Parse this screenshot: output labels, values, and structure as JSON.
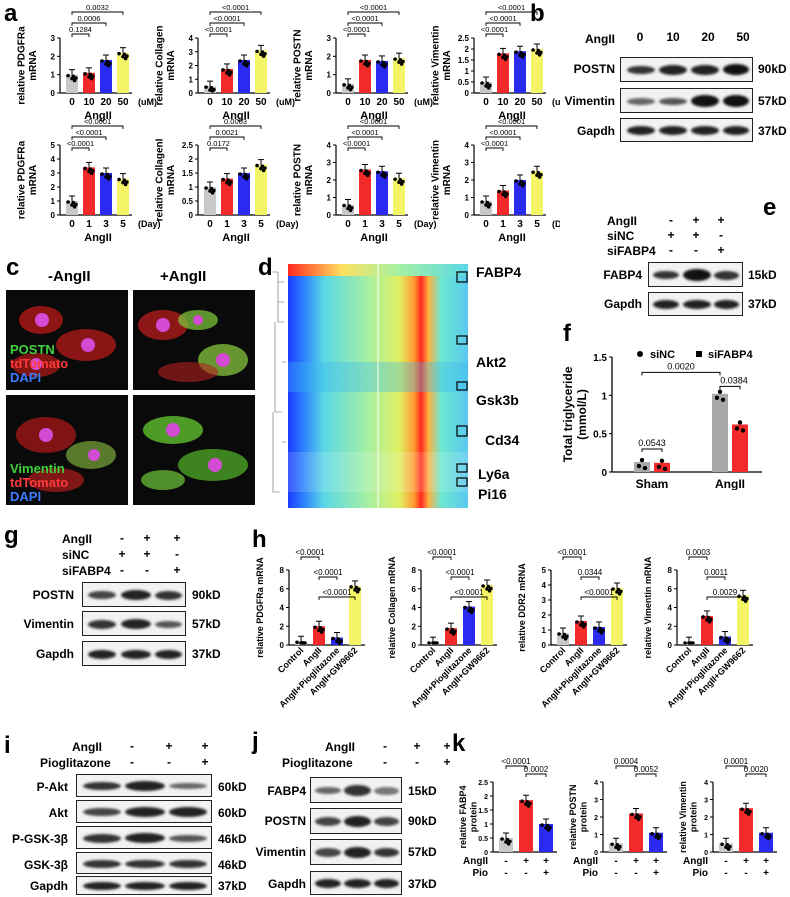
{
  "panels": {
    "a": "a",
    "b": "b",
    "c": "c",
    "d": "d",
    "e": "e",
    "f": "f",
    "g": "g",
    "h": "h",
    "i": "i",
    "j": "j",
    "k": "k"
  },
  "colors": {
    "grey": "#c8c8c8",
    "red": "#f32a2a",
    "blue": "#2a2af0",
    "yellow": "#f4f566"
  },
  "panel_a": {
    "charts": [
      {
        "ylabel": "relative PDGFRa mRNA",
        "cats": [
          "0",
          "10",
          "20",
          "50"
        ],
        "unit": "(uM)",
        "xlabel": "AngII",
        "values": [
          1.0,
          1.1,
          1.8,
          2.2
        ],
        "ymax": 3,
        "ticks": [
          0,
          1,
          2,
          3
        ],
        "pvals": [
          {
            "a": 0,
            "b": 1,
            "t": "0.1284"
          },
          {
            "a": 0,
            "b": 2,
            "t": "0.0006"
          },
          {
            "a": 0,
            "b": 3,
            "t": "0.0032"
          }
        ]
      },
      {
        "ylabel": "relative Collagen mRNA",
        "cats": [
          "0",
          "10",
          "20",
          "50"
        ],
        "unit": "(uM)",
        "xlabel": "AngII",
        "values": [
          0.5,
          1.75,
          2.4,
          3.1
        ],
        "ymax": 4,
        "ticks": [
          0,
          1,
          2,
          3,
          4
        ],
        "pvals": [
          {
            "a": 0,
            "b": 1,
            "t": "<0.0001"
          },
          {
            "a": 0,
            "b": 2,
            "t": "<0.0001"
          },
          {
            "a": 0,
            "b": 3,
            "t": "<0.0001"
          }
        ]
      },
      {
        "ylabel": "relative POSTN mRNA",
        "cats": [
          "0",
          "10",
          "20",
          "50"
        ],
        "unit": "(uM)",
        "xlabel": "AngII",
        "values": [
          0.5,
          1.8,
          1.75,
          1.9
        ],
        "ymax": 3,
        "ticks": [
          0,
          1,
          2,
          3
        ],
        "pvals": [
          {
            "a": 0,
            "b": 1,
            "t": "<0.0001"
          },
          {
            "a": 0,
            "b": 2,
            "t": "<0.0001"
          },
          {
            "a": 0,
            "b": 3,
            "t": "<0.0001"
          }
        ]
      },
      {
        "ylabel": "relative Vimentin mRNA",
        "cats": [
          "0",
          "10",
          "20",
          "50"
        ],
        "unit": "(uM)",
        "xlabel": "AngII",
        "values": [
          0.5,
          1.8,
          1.9,
          2.0
        ],
        "ymax": 2.5,
        "ticks": [
          0,
          0.5,
          1,
          1.5,
          2,
          2.5
        ],
        "pvals": [
          {
            "a": 0,
            "b": 1,
            "t": "<0.0001"
          },
          {
            "a": 0,
            "b": 2,
            "t": "<0.0001"
          },
          {
            "a": 0,
            "b": 3,
            "t": "<0.0001"
          }
        ]
      },
      {
        "ylabel": "relative PDGFRa mRNA",
        "cats": [
          "0",
          "1",
          "3",
          "5"
        ],
        "unit": "(Day)",
        "xlabel": "AngII",
        "values": [
          1.0,
          3.4,
          3.0,
          2.6
        ],
        "ymax": 5,
        "ticks": [
          0,
          1,
          2,
          3,
          4,
          5
        ],
        "pvals": [
          {
            "a": 0,
            "b": 1,
            "t": "<0.0001"
          },
          {
            "a": 0,
            "b": 2,
            "t": "<0.0001"
          },
          {
            "a": 0,
            "b": 3,
            "t": "<0.0001"
          }
        ]
      },
      {
        "ylabel": "relative CollagenI mRNA",
        "cats": [
          "0",
          "1",
          "3",
          "5"
        ],
        "unit": "(Day)",
        "xlabel": "AngII",
        "values": [
          1.0,
          1.3,
          1.5,
          1.8
        ],
        "ymax": 2.5,
        "ticks": [
          0,
          0.5,
          1,
          1.5,
          2,
          2.5
        ],
        "pvals": [
          {
            "a": 0,
            "b": 1,
            "t": "0.0172"
          },
          {
            "a": 0,
            "b": 2,
            "t": "0.0021"
          },
          {
            "a": 0,
            "b": 3,
            "t": "0.0003"
          }
        ]
      },
      {
        "ylabel": "relative POSTN mRNA",
        "cats": [
          "0",
          "1",
          "3",
          "5"
        ],
        "unit": "(Day)",
        "xlabel": "AngII",
        "values": [
          0.6,
          2.6,
          2.5,
          2.1
        ],
        "ymax": 4,
        "ticks": [
          0,
          1,
          2,
          3,
          4
        ],
        "pvals": [
          {
            "a": 0,
            "b": 1,
            "t": "<0.0001"
          },
          {
            "a": 0,
            "b": 2,
            "t": "<0.0001"
          },
          {
            "a": 0,
            "b": 3,
            "t": "<0.0001"
          }
        ]
      },
      {
        "ylabel": "relative Vimentin mRNA",
        "cats": [
          "0",
          "1",
          "3",
          "5"
        ],
        "unit": "(Day)",
        "xlabel": "AngII",
        "values": [
          0.8,
          1.4,
          2.0,
          2.5
        ],
        "ymax": 4,
        "ticks": [
          0,
          1,
          2,
          3,
          4
        ],
        "pvals": [
          {
            "a": 0,
            "b": 1,
            "t": "<0.0001"
          },
          {
            "a": 0,
            "b": 2,
            "t": "<0.0001"
          },
          {
            "a": 0,
            "b": 3,
            "t": "<0.0001"
          }
        ]
      }
    ]
  },
  "panel_b": {
    "cond_label": "AngII",
    "doses": [
      "0",
      "10",
      "20",
      "50"
    ],
    "rows": [
      {
        "name": "POSTN",
        "size": "90kD"
      },
      {
        "name": "Vimentin",
        "size": "57kD"
      },
      {
        "name": "Gapdh",
        "size": "37kD"
      }
    ]
  },
  "panel_c": {
    "col_left": "-AngII",
    "col_right": "+AngII",
    "top": {
      "l1": "POSTN",
      "l2": "tdTomato",
      "l3": "DAPI"
    },
    "bottom": {
      "l1": "Vimentin",
      "l2": "tdTomato",
      "l3": "DAPI"
    }
  },
  "panel_d": {
    "genes": [
      "FABP4",
      "Akt2",
      "Gsk3b",
      "Cd34",
      "Ly6a",
      "Pi16"
    ]
  },
  "panel_e": {
    "rows": [
      {
        "label": "AngII",
        "signs": [
          "-",
          "+",
          "+"
        ]
      },
      {
        "label": "siNC",
        "signs": [
          "+",
          "+",
          "-"
        ]
      },
      {
        "label": "siFABP4",
        "signs": [
          "-",
          "-",
          "+"
        ]
      }
    ],
    "blots": [
      {
        "name": "FABP4",
        "size": "15kD"
      },
      {
        "name": "Gapdh",
        "size": "37kD"
      }
    ]
  },
  "panel_f": {
    "chart_data": {
      "type": "bar",
      "ylabel": "Total triglyceride (mmol/L)",
      "ylim": [
        0,
        1.5
      ],
      "ticks": [
        0,
        0.5,
        1,
        1.5
      ],
      "categories": [
        "Sham",
        "AngII"
      ],
      "series": [
        {
          "name": "siNC",
          "values": [
            0.13,
            1.02
          ]
        },
        {
          "name": "siFABP4",
          "values": [
            0.12,
            0.62
          ]
        }
      ],
      "pvals": [
        {
          "t": "0.0543"
        },
        {
          "t": "0.0020"
        },
        {
          "t": "0.0384"
        }
      ]
    }
  },
  "panel_g": {
    "rows": [
      {
        "label": "AngII",
        "signs": [
          "-",
          "+",
          "+"
        ]
      },
      {
        "label": "siNC",
        "signs": [
          "+",
          "+",
          "-"
        ]
      },
      {
        "label": "siFABP4",
        "signs": [
          "-",
          "-",
          "+"
        ]
      }
    ],
    "blots": [
      {
        "name": "POSTN",
        "size": "90kD"
      },
      {
        "name": "Vimentin",
        "size": "57kD"
      },
      {
        "name": "Gapdh",
        "size": "37kD"
      }
    ]
  },
  "panel_h": {
    "cats": [
      "Control",
      "AngII",
      "AngII+Pioglitazone",
      "AngII+GW9662"
    ],
    "charts": [
      {
        "ylabel": "relative PDGFRa mRNA",
        "values": [
          0.4,
          2.0,
          0.8,
          6.3
        ],
        "ymax": 8,
        "ticks": [
          0,
          2,
          4,
          6,
          8
        ],
        "pvals": [
          {
            "a": 0,
            "b": 1,
            "t": "<0.0001"
          },
          {
            "a": 1,
            "b": 2,
            "t": "<0.0001"
          },
          {
            "a": 1,
            "b": 3,
            "t": "<0.0001"
          }
        ]
      },
      {
        "ylabel": "relative Collagen mRNA",
        "values": [
          0.3,
          1.8,
          4.1,
          6.4
        ],
        "ymax": 8,
        "ticks": [
          0,
          2,
          4,
          6,
          8
        ],
        "pvals": [
          {
            "a": 0,
            "b": 1,
            "t": "<0.0001"
          },
          {
            "a": 1,
            "b": 2,
            "t": "<0.0001"
          },
          {
            "a": 1,
            "b": 3,
            "t": "<0.0001"
          }
        ]
      },
      {
        "ylabel": "relative DDR2 mRNA",
        "values": [
          0.8,
          1.6,
          1.2,
          3.8
        ],
        "ymax": 5,
        "ticks": [
          0,
          1,
          2,
          3,
          4,
          5
        ],
        "pvals": [
          {
            "a": 0,
            "b": 1,
            "t": "<0.0001"
          },
          {
            "a": 1,
            "b": 2,
            "t": "0.0344"
          },
          {
            "a": 1,
            "b": 3,
            "t": "<0.0001"
          }
        ]
      },
      {
        "ylabel": "relative Vimentin mRNA",
        "values": [
          0.3,
          3.1,
          0.9,
          5.3
        ],
        "ymax": 8,
        "ticks": [
          0,
          2,
          4,
          6,
          8
        ],
        "pvals": [
          {
            "a": 0,
            "b": 1,
            "t": "0.0003"
          },
          {
            "a": 1,
            "b": 2,
            "t": "0.0011"
          },
          {
            "a": 1,
            "b": 3,
            "t": "0.0029"
          }
        ]
      }
    ]
  },
  "panel_i": {
    "rows": [
      {
        "label": "AngII",
        "signs": [
          "-",
          "+",
          "+"
        ]
      },
      {
        "label": "Pioglitazone",
        "signs": [
          "-",
          "-",
          "+"
        ]
      }
    ],
    "blots": [
      {
        "name": "P-Akt",
        "size": "60kD"
      },
      {
        "name": "Akt",
        "size": "60kD"
      },
      {
        "name": "P-GSK-3β",
        "size": "46kD"
      },
      {
        "name": "GSK-3β",
        "size": "46kD"
      },
      {
        "name": "Gapdh",
        "size": "37kD"
      }
    ]
  },
  "panel_j": {
    "rows": [
      {
        "label": "AngII",
        "signs": [
          "-",
          "+",
          "+"
        ]
      },
      {
        "label": "Pioglitazone",
        "signs": [
          "-",
          "-",
          "+"
        ]
      }
    ],
    "blots": [
      {
        "name": "FABP4",
        "size": "15kD"
      },
      {
        "name": "POSTN",
        "size": "90kD"
      },
      {
        "name": "Vimentin",
        "size": "57kD"
      },
      {
        "name": "Gapdh",
        "size": "37kD"
      }
    ]
  },
  "panel_k": {
    "row_labels": [
      "AngII",
      "Pio"
    ],
    "signs": [
      [
        "-",
        "+",
        "+"
      ],
      [
        "-",
        "-",
        "+"
      ]
    ],
    "charts": [
      {
        "ylabel": "relative FABP4 protein",
        "values": [
          0.5,
          1.85,
          1.0
        ],
        "ymax": 2.5,
        "ticks": [
          0,
          0.5,
          1,
          1.5,
          2,
          2.5
        ],
        "pvals": [
          {
            "a": 0,
            "b": 1,
            "t": "<0.0001"
          },
          {
            "a": 1,
            "b": 2,
            "t": "0.0002"
          }
        ]
      },
      {
        "ylabel": "relative POSTN protein",
        "values": [
          0.5,
          2.2,
          1.1
        ],
        "ymax": 4,
        "ticks": [
          0,
          1,
          2,
          3,
          4
        ],
        "pvals": [
          {
            "a": 0,
            "b": 1,
            "t": "0.0004"
          },
          {
            "a": 1,
            "b": 2,
            "t": "0.0052"
          }
        ]
      },
      {
        "ylabel": "relative Vimentin protein",
        "values": [
          0.5,
          2.5,
          1.1
        ],
        "ymax": 4,
        "ticks": [
          0,
          1,
          2,
          3,
          4
        ],
        "pvals": [
          {
            "a": 0,
            "b": 1,
            "t": "0.0001"
          },
          {
            "a": 1,
            "b": 2,
            "t": "0.0020"
          }
        ]
      }
    ]
  }
}
